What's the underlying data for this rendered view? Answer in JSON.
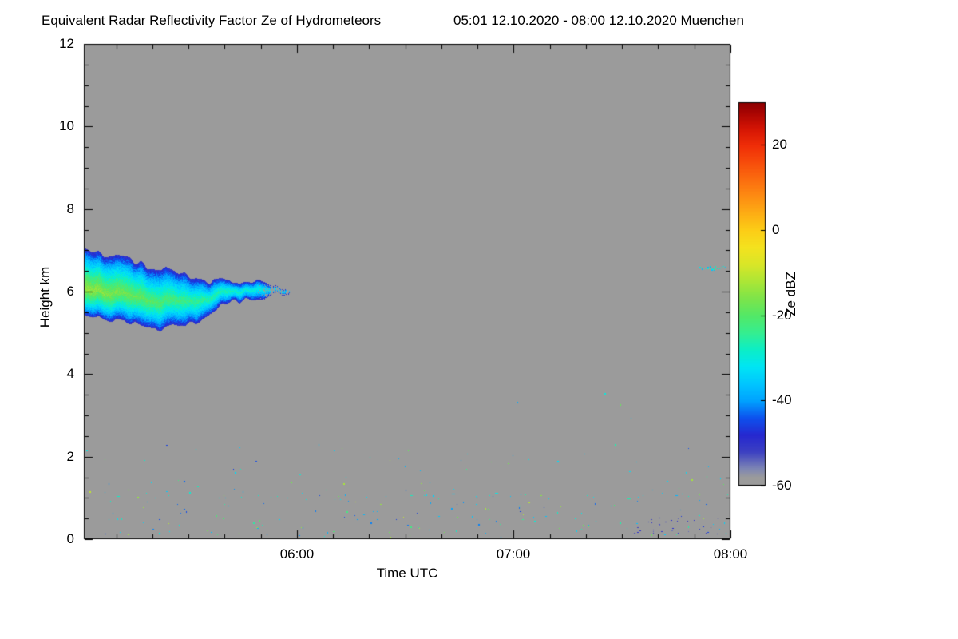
{
  "page": {
    "background": "#ffffff",
    "text_color": "#000000"
  },
  "header": {
    "title": "Equivalent Radar Reflectivity Factor Ze of Hydrometeors",
    "period": "05:01 12.10.2020 - 08:00 12.10.2020 Muenchen"
  },
  "chart_data": {
    "type": "heatmap",
    "title": "Equivalent Radar Reflectivity Factor Ze of Hydrometeors",
    "subtitle": "05:01 12.10.2020 - 08:00 12.10.2020 Muenchen",
    "station": "Muenchen",
    "xlabel": "Time UTC",
    "ylabel": "Height km",
    "colorbar_label": "Ze dBZ",
    "x_range_labels": [
      "05:01",
      "08:00"
    ],
    "x_range_min": [
      301,
      480
    ],
    "x_ticks": [
      {
        "t": 360,
        "label": "06:00"
      },
      {
        "t": 420,
        "label": "07:00"
      },
      {
        "t": 480,
        "label": "08:00"
      }
    ],
    "x_minor_step_min": 10,
    "y_range_km": [
      0,
      12
    ],
    "y_ticks": [
      0,
      2,
      4,
      6,
      8,
      10,
      12
    ],
    "y_minor_step_km": 0.5,
    "value_range_dbz": [
      -60,
      30
    ],
    "colorbar_ticks": [
      20,
      0,
      -20,
      -40,
      -60
    ],
    "background_color": "#9b9b9b",
    "no_data_below_dbz": -58,
    "colormap": [
      [
        -60,
        "#9b9b9b"
      ],
      [
        -58,
        "#9b9b9b"
      ],
      [
        -56,
        "#7e86b4"
      ],
      [
        -52,
        "#3c40c2"
      ],
      [
        -48,
        "#2628d0"
      ],
      [
        -44,
        "#0d52ee"
      ],
      [
        -40,
        "#00a2ff"
      ],
      [
        -36,
        "#00c6ff"
      ],
      [
        -32,
        "#00e5f4"
      ],
      [
        -28,
        "#0ceec6"
      ],
      [
        -24,
        "#36ee8f"
      ],
      [
        -20,
        "#53e867"
      ],
      [
        -16,
        "#7de44a"
      ],
      [
        -12,
        "#ace636"
      ],
      [
        -8,
        "#d9e628"
      ],
      [
        -4,
        "#f4e21e"
      ],
      [
        0,
        "#fccd16"
      ],
      [
        4,
        "#fdad14"
      ],
      [
        8,
        "#fd8c12"
      ],
      [
        12,
        "#fb6c0f"
      ],
      [
        16,
        "#f74c0b"
      ],
      [
        20,
        "#ef2d07"
      ],
      [
        24,
        "#d31404"
      ],
      [
        28,
        "#a40302"
      ],
      [
        30,
        "#8b0000"
      ]
    ],
    "seed": 20201012,
    "features": {
      "main_cloud": {
        "description": "Mid-level ice cloud 05:01-05:58 UTC between about 5.1 and 7.0 km; core near -15 dBZ (green/yellow-green), edges near -50 dBZ (blue), ragged wispy end",
        "t_start_min": 301,
        "t_end_min": 358,
        "top_profile": [
          [
            0,
            7.02
          ],
          [
            0.18,
            6.82
          ],
          [
            0.37,
            6.55
          ],
          [
            0.52,
            6.35
          ],
          [
            0.64,
            6.25
          ],
          [
            1,
            6.2
          ]
        ],
        "bottom_profile": [
          [
            0,
            5.5
          ],
          [
            0.18,
            5.3
          ],
          [
            0.37,
            5.1
          ],
          [
            0.52,
            5.2
          ],
          [
            0.64,
            5.6
          ],
          [
            0.72,
            5.82
          ],
          [
            1,
            5.92
          ]
        ],
        "edge_value_dbz": -50,
        "core_value_left_dbz": -13,
        "core_value_right_dbz": -33,
        "edge_noise_km": 0.1,
        "wisp_start": 0.84
      },
      "cirrus_streak": {
        "description": "Thin cloud echo 07:51-07:58 UTC near 6.55 km, about -32 dBZ (cyan)",
        "t_start_min": 471,
        "t_end_min": 478.5,
        "h_center_km": 6.58,
        "h_halfwidth_km": 0.08,
        "value_dbz": -32,
        "value_spread_dbz": 9,
        "dropout": 0.3
      },
      "boundary_layer_clutter": {
        "description": "Sparse speckles (insects/clutter) below about 2.3 km over the whole period, with a loose dotted layer near 1.05 km and a dark-blue cluster near the surface 07:32-07:57",
        "count": 210,
        "height_max_km": 2.3,
        "dbz_range": [
          -48,
          -10
        ],
        "dotted_line_height_km": 1.05,
        "cluster": {
          "t_start_min": 452,
          "t_end_min": 477,
          "h_range_km": [
            0.12,
            0.62
          ],
          "dbz_range": [
            -55,
            -46
          ],
          "count": 32
        },
        "outliers": [
          [
            445,
            3.55,
            -30
          ],
          [
            448,
            2.3,
            -26
          ],
          [
            432,
            1.9,
            -33
          ]
        ]
      }
    }
  }
}
